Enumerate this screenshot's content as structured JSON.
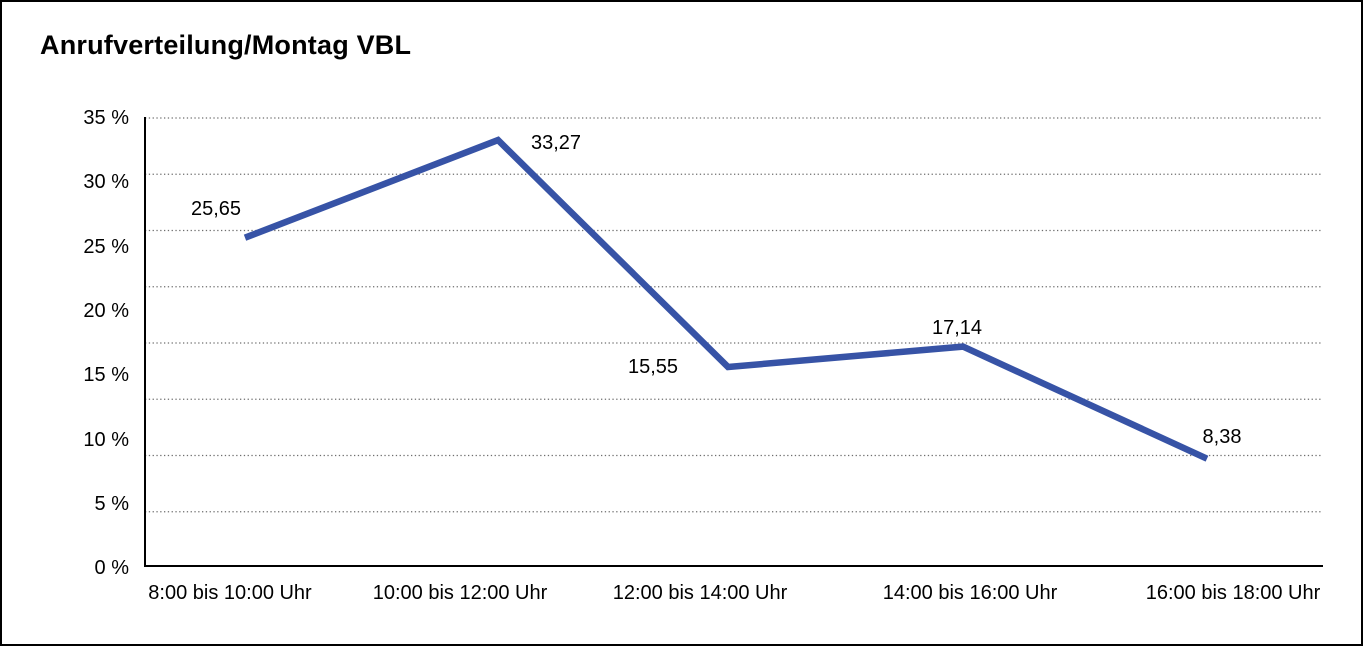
{
  "title": "Anrufverteilung/Montag VBL",
  "chart_data": {
    "type": "line",
    "title": "Anrufverteilung/Montag VBL",
    "categories": [
      "8:00 bis 10:00 Uhr",
      "10:00 bis 12:00 Uhr",
      "12:00 bis 14:00 Uhr",
      "14:00 bis 16:00 Uhr",
      "16:00 bis 18:00 Uhr"
    ],
    "values": [
      25.65,
      33.27,
      15.55,
      17.14,
      8.38
    ],
    "value_labels": [
      "25,65",
      "33,27",
      "15,55",
      "17,14",
      "8,38"
    ],
    "y_tick_labels": [
      "35 %",
      "30 %",
      "25 %",
      "20 %",
      "15 %",
      "10 %",
      "5 %",
      "0 %"
    ],
    "ylim": [
      0,
      35
    ],
    "y_unit": "%",
    "xlabel": "",
    "ylabel": "",
    "grid": "horizontal-dotted",
    "legend": "none",
    "line_color": "#3753A6",
    "axis_color": "#000000",
    "gridline_color": "#6e6e6e",
    "decimal_separator": ","
  }
}
